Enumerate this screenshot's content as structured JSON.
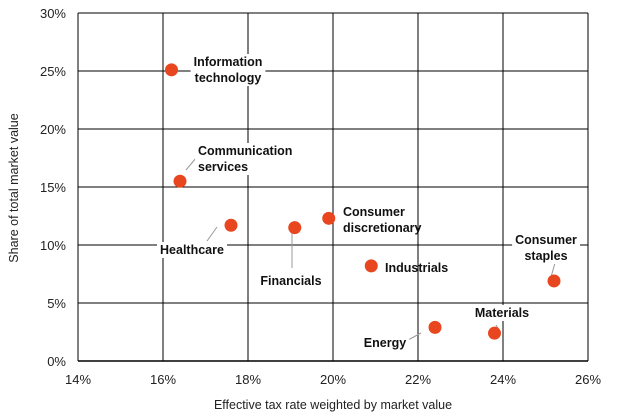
{
  "chart_data": {
    "type": "scatter",
    "xlabel": "Effective tax rate weighted by market value",
    "ylabel": "Share of total market value",
    "xlim": [
      14,
      26
    ],
    "ylim": [
      0,
      30
    ],
    "x_ticks": [
      "14%",
      "16%",
      "18%",
      "20%",
      "22%",
      "24%",
      "26%"
    ],
    "y_ticks": [
      "0%",
      "5%",
      "10%",
      "15%",
      "20%",
      "25%",
      "30%"
    ],
    "grid": true,
    "marker_color": "#e8461e",
    "points": [
      {
        "label": "Information technology",
        "x": 16.2,
        "y": 25.1
      },
      {
        "label": "Communication services",
        "x": 16.4,
        "y": 15.5
      },
      {
        "label": "Healthcare",
        "x": 17.6,
        "y": 11.7
      },
      {
        "label": "Financials",
        "x": 19.1,
        "y": 11.5
      },
      {
        "label": "Consumer discretionary",
        "x": 19.9,
        "y": 12.3
      },
      {
        "label": "Industrials",
        "x": 20.9,
        "y": 8.2
      },
      {
        "label": "Energy",
        "x": 22.4,
        "y": 2.9
      },
      {
        "label": "Materials",
        "x": 23.8,
        "y": 2.4
      },
      {
        "label": "Consumer staples",
        "x": 25.2,
        "y": 6.9
      }
    ]
  }
}
